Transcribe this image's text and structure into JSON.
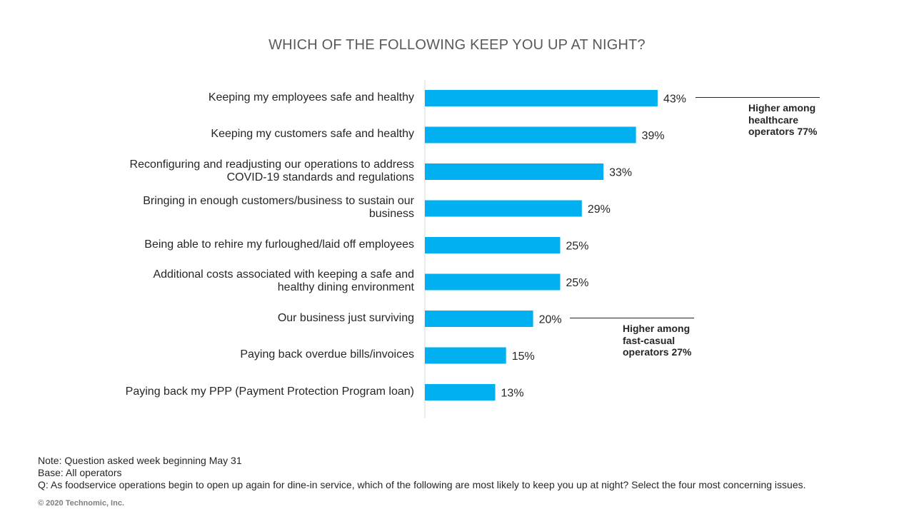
{
  "chart_data": {
    "type": "bar",
    "orientation": "horizontal",
    "title": "WHICH OF THE FOLLOWING KEEP YOU UP AT NIGHT?",
    "categories": [
      "Keeping my employees safe and healthy",
      "Keeping my customers safe and healthy",
      "Reconfiguring and readjusting our operations to address COVID-19 standards and regulations",
      "Bringing in enough customers/business to sustain our business",
      "Being able to rehire my furloughed/laid off employees",
      "Additional costs associated with keeping a safe and healthy dining environment",
      "Our business just surviving",
      "Paying back overdue bills/invoices",
      "Paying back my PPP (Payment Protection Program loan)"
    ],
    "values": [
      43,
      39,
      33,
      29,
      25,
      25,
      20,
      15,
      13
    ],
    "value_labels": [
      "43%",
      "39%",
      "33%",
      "29%",
      "25%",
      "25%",
      "20%",
      "15%",
      "13%"
    ],
    "bar_color": "#00B0F0",
    "grid": false,
    "annotations": [
      {
        "category_index": 0,
        "text": "Higher among healthcare operators 77%"
      },
      {
        "category_index": 6,
        "text": "Higher among fast-casual operators 27%"
      }
    ]
  },
  "notes": {
    "note": "Note: Question asked week beginning May 31",
    "base": "Base: All operators",
    "question": "Q: As foodservice operations begin to open up again for dine-in service, which of the following are most likely to keep you up at night? Select the four most concerning issues."
  },
  "copyright": "© 2020 Technomic, Inc."
}
